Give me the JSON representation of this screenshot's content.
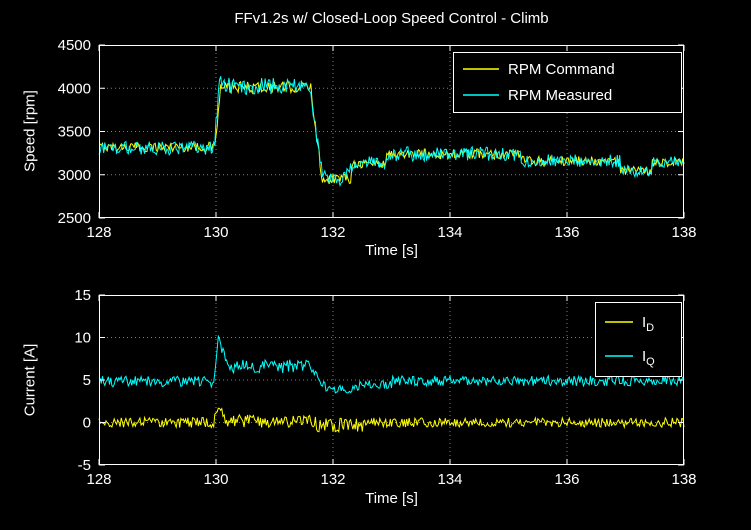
{
  "figure": {
    "background": "#000000",
    "axis_color": "#ffffff",
    "text_color": "#ffffff"
  },
  "chart_data": [
    {
      "type": "line",
      "title": "FFv1.2s w/ Closed-Loop Speed Control - Climb",
      "xlabel": "Time [s]",
      "ylabel": "Speed [rpm]",
      "xlim": [
        128,
        138
      ],
      "ylim": [
        2500,
        4500
      ],
      "xticks": [
        128,
        130,
        132,
        134,
        136,
        138
      ],
      "yticks": [
        2500,
        3000,
        3500,
        4000,
        4500
      ],
      "grid": true,
      "legend_position": "northeast",
      "series": [
        {
          "name": "RPM Command",
          "color": "#ffff00",
          "segments": [
            [
              128,
              129.98,
              3320,
              3320,
              55
            ],
            [
              129.98,
              130.08,
              3320,
              4000,
              55
            ],
            [
              130.08,
              131.62,
              4010,
              4010,
              65
            ],
            [
              131.62,
              131.78,
              4010,
              3120,
              60
            ],
            [
              131.78,
              132.3,
              2960,
              2960,
              60
            ],
            [
              132.3,
              132.9,
              3130,
              3130,
              55
            ],
            [
              132.9,
              135.2,
              3240,
              3240,
              60
            ],
            [
              135.2,
              136.9,
              3160,
              3160,
              55
            ],
            [
              136.9,
              137.45,
              3040,
              3040,
              55
            ],
            [
              137.45,
              138,
              3150,
              3150,
              55
            ]
          ]
        },
        {
          "name": "RPM Measured",
          "color": "#00ffff",
          "segments": [
            [
              128,
              129.97,
              3310,
              3310,
              80
            ],
            [
              129.97,
              130.06,
              3310,
              4120,
              80
            ],
            [
              130.06,
              130.2,
              4120,
              4000,
              90
            ],
            [
              130.2,
              131.6,
              4020,
              4020,
              100
            ],
            [
              131.6,
              131.8,
              4020,
              3100,
              80
            ],
            [
              131.8,
              132.1,
              3000,
              2920,
              70
            ],
            [
              132.1,
              132.35,
              2920,
              3120,
              70
            ],
            [
              132.35,
              132.9,
              3140,
              3140,
              75
            ],
            [
              132.9,
              135.2,
              3240,
              3240,
              85
            ],
            [
              135.2,
              136.9,
              3160,
              3160,
              75
            ],
            [
              136.9,
              137.45,
              3040,
              3040,
              70
            ],
            [
              137.45,
              138,
              3150,
              3150,
              75
            ]
          ]
        }
      ]
    },
    {
      "type": "line",
      "title": "",
      "xlabel": "Time [s]",
      "ylabel": "Current [A]",
      "xlim": [
        128,
        138
      ],
      "ylim": [
        -5,
        15
      ],
      "xticks": [
        128,
        130,
        132,
        134,
        136,
        138
      ],
      "yticks": [
        -5,
        0,
        5,
        10,
        15
      ],
      "grid": true,
      "legend_position": "northeast",
      "series": [
        {
          "name": "I_D",
          "display": {
            "base": "I",
            "sub": "D"
          },
          "color": "#ffff00",
          "segments": [
            [
              128,
              129.96,
              0,
              0,
              0.6
            ],
            [
              129.96,
              130.05,
              0,
              2.2,
              0.5
            ],
            [
              130.05,
              130.15,
              2.2,
              0.2,
              0.5
            ],
            [
              130.15,
              131.7,
              0.15,
              0.15,
              0.75
            ],
            [
              131.7,
              132.5,
              -0.3,
              -0.3,
              0.8
            ],
            [
              132.5,
              138,
              0,
              0,
              0.55
            ]
          ]
        },
        {
          "name": "I_Q",
          "display": {
            "base": "I",
            "sub": "Q"
          },
          "color": "#00ffff",
          "segments": [
            [
              128,
              129.96,
              4.8,
              4.8,
              0.65
            ],
            [
              129.96,
              130.04,
              4.8,
              9.8,
              0.5
            ],
            [
              130.04,
              130.25,
              9.8,
              6.6,
              0.7
            ],
            [
              130.25,
              131.6,
              6.6,
              6.6,
              0.8
            ],
            [
              131.6,
              131.9,
              6.6,
              3.8,
              0.6
            ],
            [
              131.9,
              132.45,
              3.9,
              3.9,
              0.5
            ],
            [
              132.45,
              133,
              4.5,
              4.5,
              0.5
            ],
            [
              133,
              138,
              4.9,
              4.9,
              0.6
            ]
          ]
        }
      ]
    }
  ]
}
